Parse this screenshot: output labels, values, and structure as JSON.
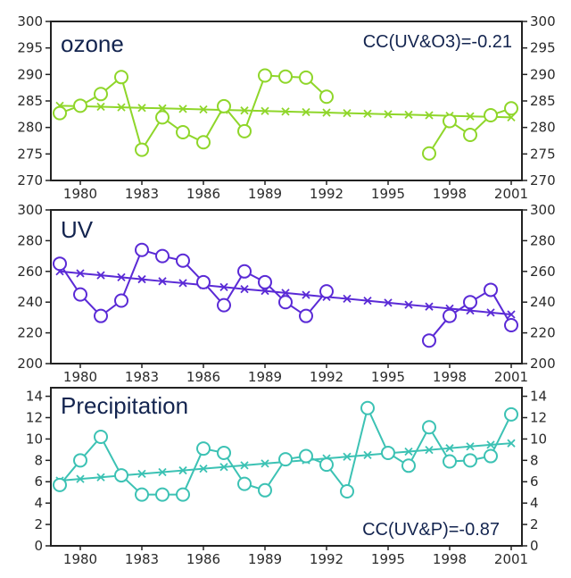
{
  "chart_data": [
    {
      "type": "line",
      "title": "ozone",
      "annotation": "CC(UV&O3)=-0.21",
      "annotation_position": "top-right",
      "color": "#8fd62a",
      "xlabel": "",
      "ylabel": "",
      "xlim": [
        1978.5,
        2001.5
      ],
      "ylim": [
        270,
        300
      ],
      "yticks": [
        270,
        275,
        280,
        285,
        290,
        295,
        300
      ],
      "ytick_labels": [
        "270",
        "275",
        "280",
        "285",
        "290",
        "295",
        "300"
      ],
      "xticks": [
        1980,
        1983,
        1986,
        1989,
        1992,
        1995,
        1998,
        2001
      ],
      "xtick_labels": [
        "1980",
        "1983",
        "1986",
        "1989",
        "1992",
        "1995",
        "1998",
        "2001"
      ],
      "grid": false,
      "x": [
        1979,
        1980,
        1981,
        1982,
        1983,
        1984,
        1985,
        1986,
        1987,
        1988,
        1989,
        1990,
        1991,
        1992,
        1993,
        1994,
        1995,
        1996,
        1997,
        1998,
        1999,
        2000,
        2001
      ],
      "series": [
        {
          "name": "observed",
          "marker": "circle",
          "values": [
            282.7,
            284.1,
            286.3,
            289.5,
            275.8,
            281.9,
            279.1,
            277.2,
            284.0,
            279.3,
            289.8,
            289.6,
            289.4,
            285.8,
            null,
            null,
            null,
            null,
            275.1,
            281.2,
            278.6,
            282.3,
            283.6
          ]
        },
        {
          "name": "trend",
          "marker": "x",
          "values": [
            284.1,
            284.0,
            283.9,
            283.8,
            283.7,
            283.6,
            283.5,
            283.4,
            283.3,
            283.2,
            283.1,
            283.0,
            282.9,
            282.8,
            282.7,
            282.6,
            282.5,
            282.4,
            282.3,
            282.2,
            282.1,
            282.0,
            281.9
          ]
        }
      ]
    },
    {
      "type": "line",
      "title": "UV",
      "annotation": "",
      "color": "#5a2ad6",
      "xlabel": "",
      "ylabel": "",
      "xlim": [
        1978.5,
        2001.5
      ],
      "ylim": [
        200,
        300
      ],
      "yticks": [
        200,
        220,
        240,
        260,
        280,
        300
      ],
      "ytick_labels": [
        "200",
        "220",
        "240",
        "260",
        "280",
        "300"
      ],
      "xticks": [
        1980,
        1983,
        1986,
        1989,
        1992,
        1995,
        1998,
        2001
      ],
      "xtick_labels": [
        "1980",
        "1983",
        "1986",
        "1989",
        "1992",
        "1995",
        "1998",
        "2001"
      ],
      "grid": false,
      "x": [
        1979,
        1980,
        1981,
        1982,
        1983,
        1984,
        1985,
        1986,
        1987,
        1988,
        1989,
        1990,
        1991,
        1992,
        1993,
        1994,
        1995,
        1996,
        1997,
        1998,
        1999,
        2000,
        2001
      ],
      "series": [
        {
          "name": "observed",
          "marker": "circle",
          "values": [
            265,
            245,
            231,
            241,
            274,
            270,
            267,
            253,
            238,
            260,
            253,
            240,
            231,
            247,
            null,
            null,
            null,
            null,
            215,
            231,
            240,
            248,
            225
          ]
        },
        {
          "name": "trend",
          "marker": "x",
          "values": [
            260,
            258.7,
            257.5,
            256.2,
            254.9,
            253.6,
            252.4,
            251.1,
            249.8,
            248.5,
            247.3,
            246.0,
            244.7,
            243.4,
            242.2,
            240.9,
            239.6,
            238.3,
            237.1,
            235.8,
            234.5,
            233.2,
            232
          ]
        }
      ]
    },
    {
      "type": "line",
      "title": "Precipitation",
      "annotation": "CC(UV&P)=-0.87",
      "annotation_position": "bottom-right",
      "color": "#3cc2b4",
      "xlabel": "",
      "ylabel": "",
      "xlim": [
        1978.5,
        2001.5
      ],
      "ylim": [
        0,
        14.8
      ],
      "yticks": [
        0,
        2,
        4,
        6,
        8,
        10,
        12,
        14
      ],
      "ytick_labels": [
        "0",
        "2",
        "4",
        "6",
        "8",
        "10",
        "12",
        "14"
      ],
      "xticks": [
        1980,
        1983,
        1986,
        1989,
        1992,
        1995,
        1998,
        2001
      ],
      "xtick_labels": [
        "1980",
        "1983",
        "1986",
        "1989",
        "1992",
        "1995",
        "1998",
        "2001"
      ],
      "grid": false,
      "x": [
        1979,
        1980,
        1981,
        1982,
        1983,
        1984,
        1985,
        1986,
        1987,
        1988,
        1989,
        1990,
        1991,
        1992,
        1993,
        1994,
        1995,
        1996,
        1997,
        1998,
        1999,
        2000,
        2001
      ],
      "series": [
        {
          "name": "observed",
          "marker": "circle",
          "values": [
            5.7,
            8.0,
            10.2,
            6.6,
            4.8,
            4.8,
            4.8,
            9.1,
            8.7,
            5.8,
            5.2,
            8.1,
            8.4,
            7.6,
            5.1,
            12.9,
            8.7,
            7.5,
            11.1,
            7.9,
            8.0,
            8.4,
            12.3
          ]
        },
        {
          "name": "trend",
          "marker": "x",
          "values": [
            6.1,
            6.26,
            6.42,
            6.58,
            6.74,
            6.9,
            7.06,
            7.22,
            7.38,
            7.54,
            7.7,
            7.86,
            8.02,
            8.18,
            8.34,
            8.5,
            8.66,
            8.82,
            8.98,
            9.14,
            9.3,
            9.46,
            9.6
          ]
        }
      ]
    }
  ]
}
